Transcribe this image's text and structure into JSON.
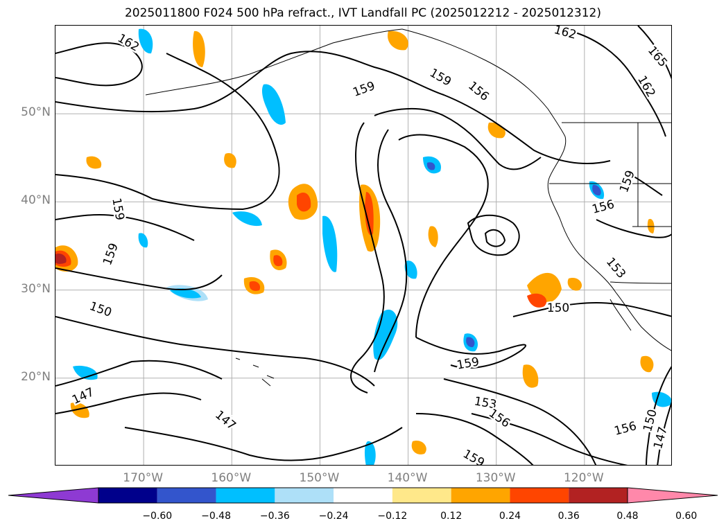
{
  "title": "2025011800 F024 500 hPa refract., IVT Landfall PC (2025012212 - 2025012312)",
  "map": {
    "lat_labels": [
      {
        "text": "50°N",
        "lat": 50
      },
      {
        "text": "40°N",
        "lat": 40
      },
      {
        "text": "30°N",
        "lat": 30
      },
      {
        "text": "20°N",
        "lat": 20
      }
    ],
    "lon_labels": [
      {
        "text": "170°W",
        "lon": -170
      },
      {
        "text": "160°W",
        "lon": -160
      },
      {
        "text": "150°W",
        "lon": -150
      },
      {
        "text": "140°W",
        "lon": -140
      },
      {
        "text": "130°W",
        "lon": -130
      },
      {
        "text": "120°W",
        "lon": -120
      }
    ],
    "extent": {
      "lon_min": -180,
      "lon_max": -110,
      "lat_min": 10,
      "lat_max": 60
    },
    "grid_color": "#b0b0b0",
    "label_color": "#7f7f7f",
    "contour_labels": [
      "162",
      "162",
      "165",
      "162",
      "159",
      "156",
      "159",
      "159",
      "159",
      "156",
      "159",
      "153",
      "150",
      "150",
      "159",
      "153",
      "156",
      "147",
      "147",
      "156",
      "150",
      "147",
      "159"
    ]
  },
  "colorbar": {
    "colors": [
      "#8e3ad3",
      "#00008b",
      "#3355cc",
      "#00bfff",
      "#aee0f8",
      "#ffffff",
      "#ffe88a",
      "#ffa500",
      "#ff4500",
      "#b22222",
      "#ff88aa"
    ],
    "ticks": [
      "−0.60",
      "−0.48",
      "−0.36",
      "−0.24",
      "−0.12",
      "0.12",
      "0.24",
      "0.36",
      "0.48",
      "0.60"
    ]
  }
}
